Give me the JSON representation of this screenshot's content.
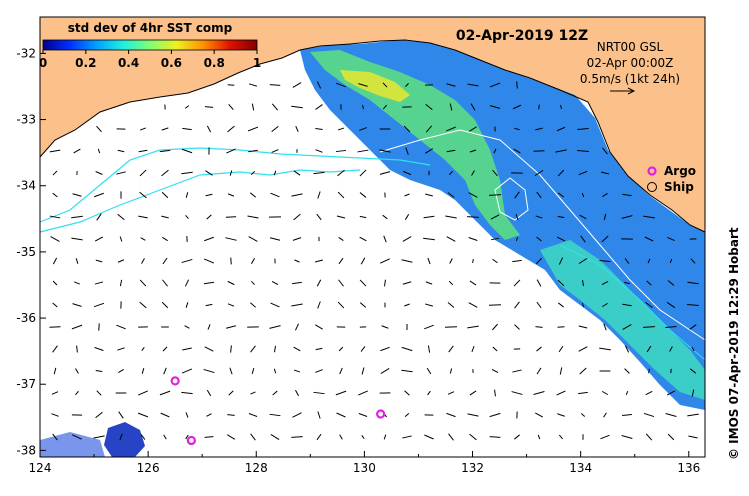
{
  "map": {
    "date_title": "02-Apr-2019 12Z",
    "colorbar": {
      "title": "std dev of 4hr SST comp",
      "tick_labels": [
        "0",
        "0.2",
        "0.4",
        "0.6",
        "0.8",
        "1"
      ],
      "colormap": [
        "#00008f",
        "#0030ff",
        "#00a0ff",
        "#20f0e0",
        "#80ff70",
        "#f0f020",
        "#ff9000",
        "#e01000",
        "#800000"
      ]
    },
    "current_info": {
      "line1": "NRT00 GSL",
      "line2": "02-Apr 00:00Z",
      "line3": "0.5m/s (1kt 24h)"
    },
    "legend": {
      "argo_label": "Argo",
      "ship_label": "Ship",
      "argo_color": "#e020e0"
    },
    "credit": "© IMOS 07-Apr-2019 12:29 Hobart",
    "x_ticks": [
      "124",
      "126",
      "128",
      "130",
      "132",
      "134",
      "136"
    ],
    "y_ticks": [
      "-32",
      "-33",
      "-34",
      "-35",
      "-36",
      "-37",
      "-38"
    ],
    "land_color": "#fcc08a",
    "argo_floats": [
      {
        "lon": 126.5,
        "lat": -36.95
      },
      {
        "lon": 126.8,
        "lat": -37.85
      },
      {
        "lon": 130.3,
        "lat": -37.45
      }
    ]
  }
}
